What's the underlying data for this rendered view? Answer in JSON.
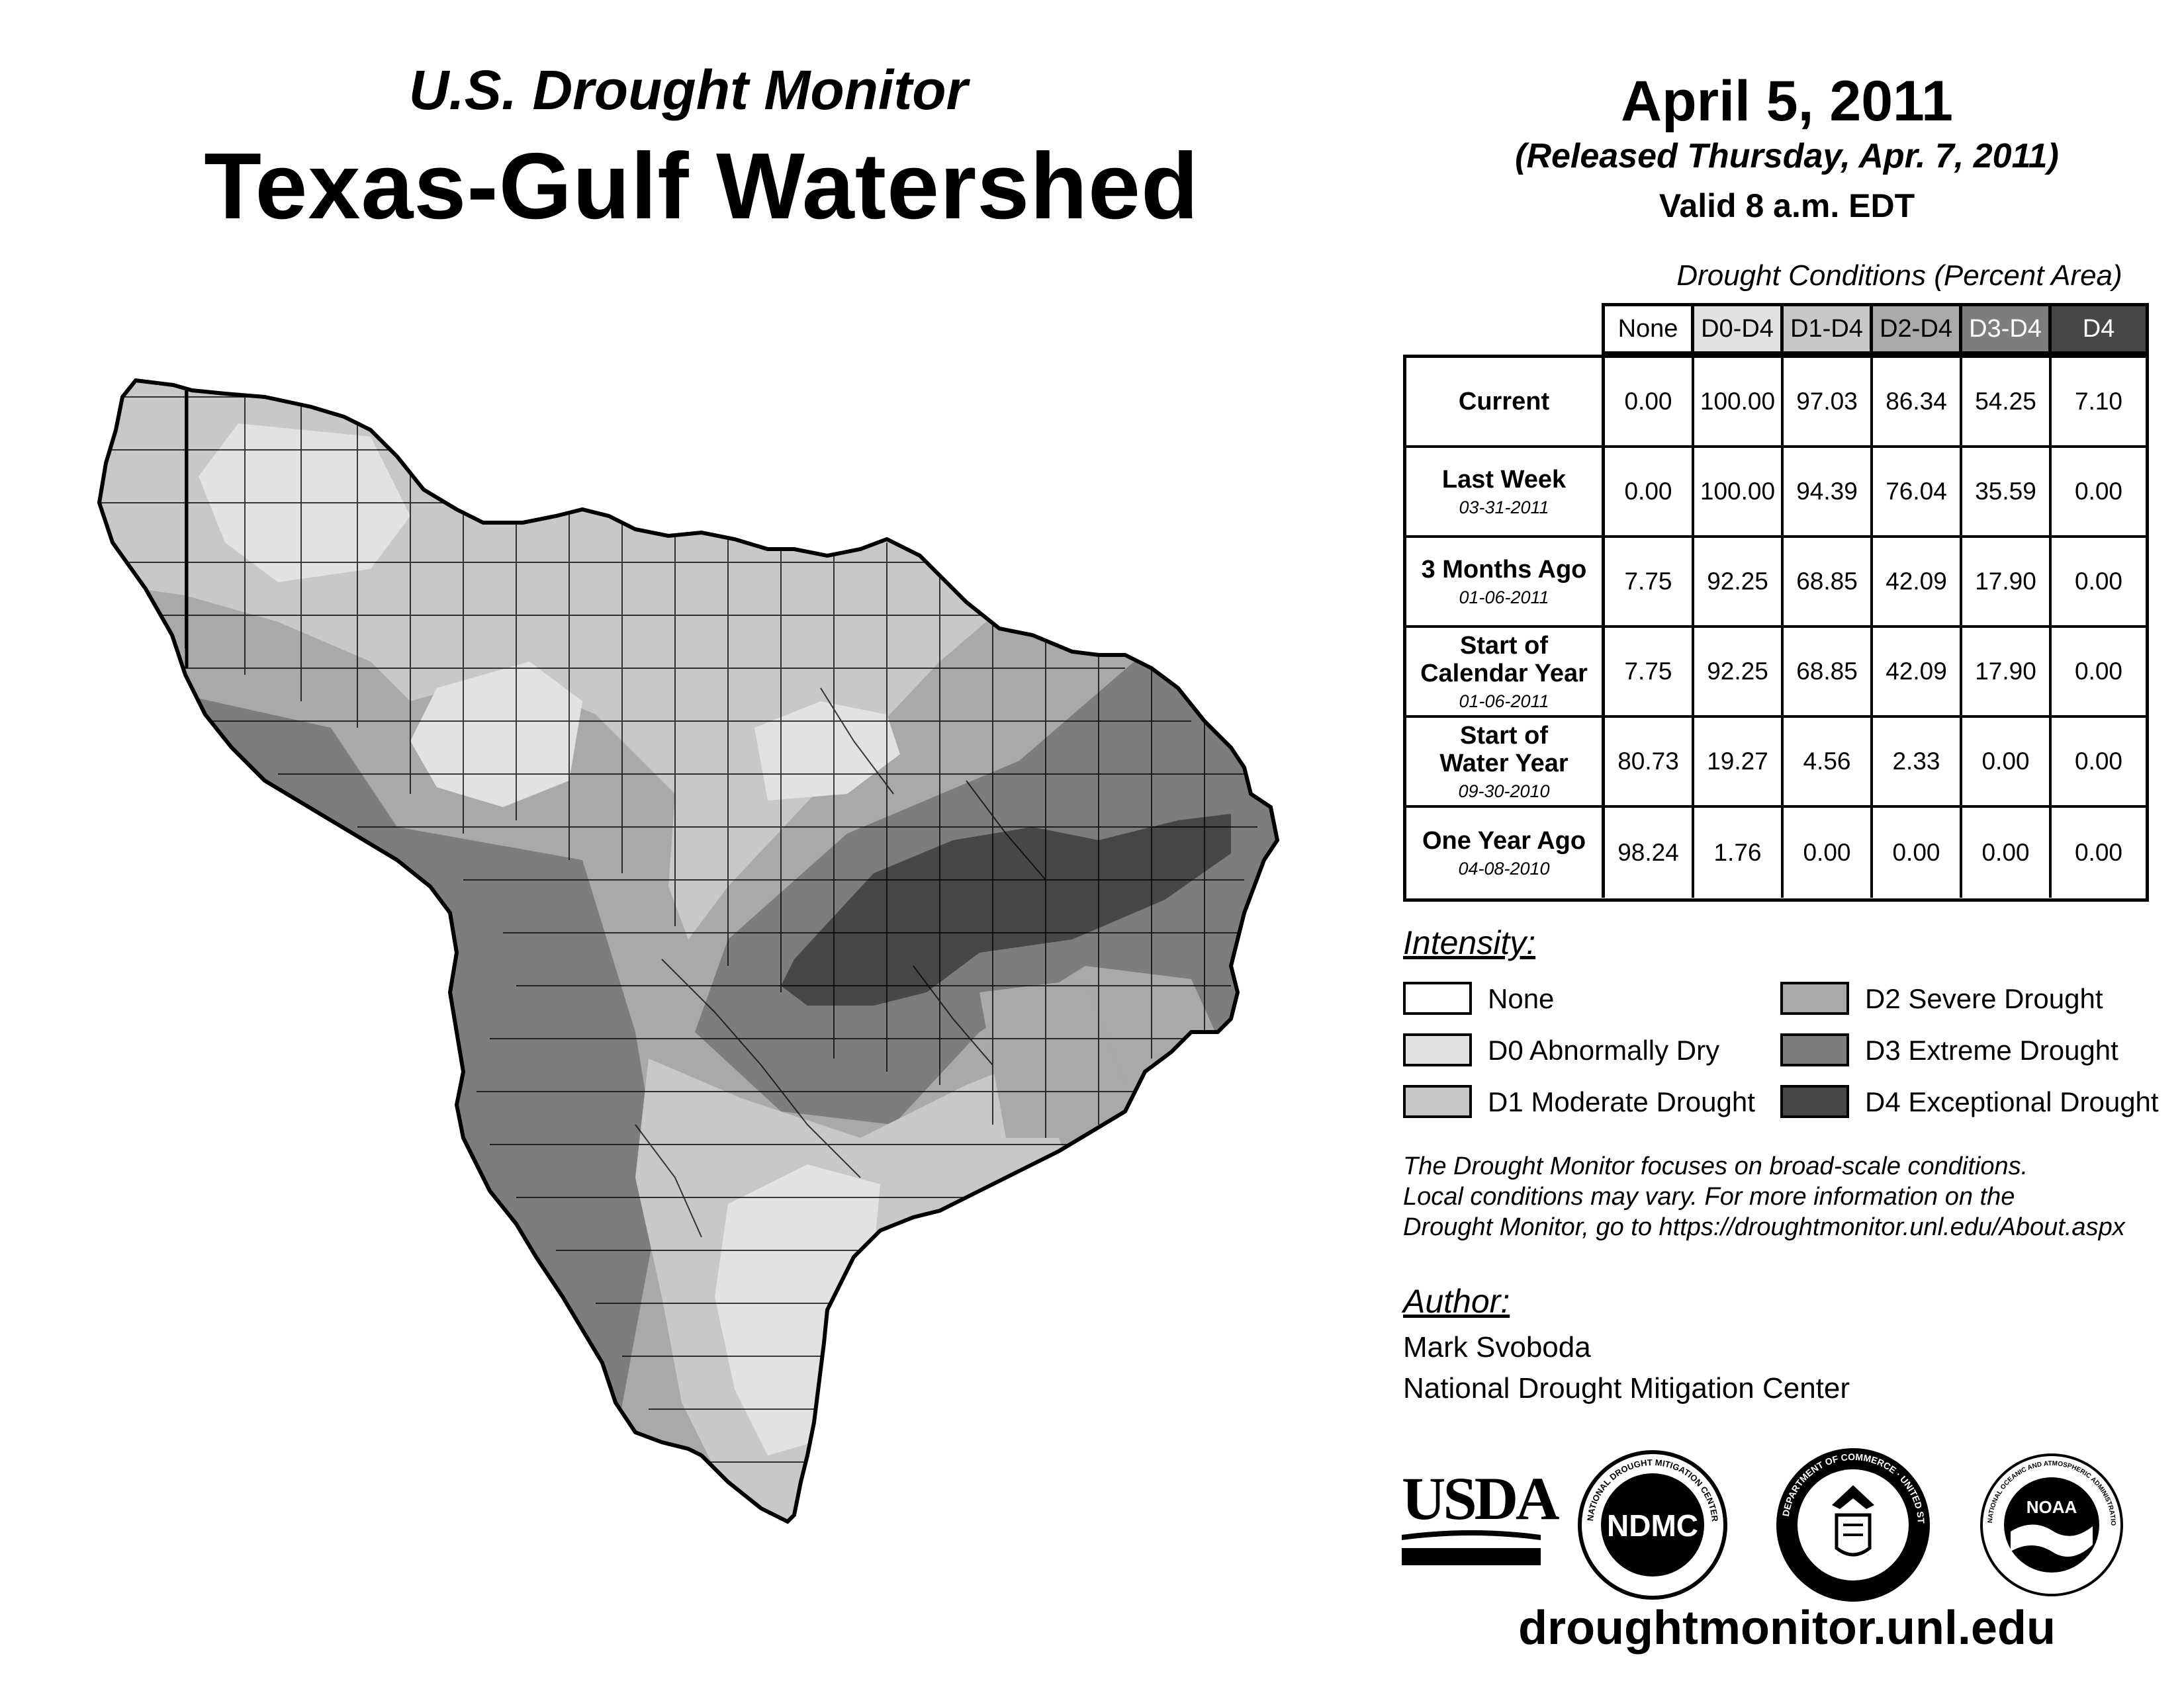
{
  "header": {
    "subtitle": "U.S. Drought Monitor",
    "title": "Texas-Gulf Watershed",
    "date": "April 5, 2011",
    "released": "(Released Thursday, Apr. 7, 2011)",
    "valid": "Valid 8 a.m. EDT"
  },
  "table": {
    "caption": "Drought Conditions (Percent Area)",
    "columns": [
      "None",
      "D0-D4",
      "D1-D4",
      "D2-D4",
      "D3-D4",
      "D4"
    ],
    "rows": [
      {
        "label": "Current",
        "date": "",
        "values": [
          "0.00",
          "100.00",
          "97.03",
          "86.34",
          "54.25",
          "7.10"
        ]
      },
      {
        "label": "Last Week",
        "date": "03-31-2011",
        "values": [
          "0.00",
          "100.00",
          "94.39",
          "76.04",
          "35.59",
          "0.00"
        ]
      },
      {
        "label": "3 Months Ago",
        "date": "01-06-2011",
        "values": [
          "7.75",
          "92.25",
          "68.85",
          "42.09",
          "17.90",
          "0.00"
        ]
      },
      {
        "label": "Start of Calendar Year",
        "date": "01-06-2011",
        "values": [
          "7.75",
          "92.25",
          "68.85",
          "42.09",
          "17.90",
          "0.00"
        ]
      },
      {
        "label": "Start of Water Year",
        "date": "09-30-2010",
        "values": [
          "80.73",
          "19.27",
          "4.56",
          "2.33",
          "0.00",
          "0.00"
        ]
      },
      {
        "label": "One Year Ago",
        "date": "04-08-2010",
        "values": [
          "98.24",
          "1.76",
          "0.00",
          "0.00",
          "0.00",
          "0.00"
        ]
      }
    ]
  },
  "legend": {
    "heading": "Intensity:",
    "items": [
      {
        "label": "None",
        "color": "#ffffff"
      },
      {
        "label": "D0 Abnormally Dry",
        "color": "#e2e2e2"
      },
      {
        "label": "D1 Moderate Drought",
        "color": "#c8c8c8"
      },
      {
        "label": "D2 Severe Drought",
        "color": "#a9a9a9"
      },
      {
        "label": "D3 Extreme Drought",
        "color": "#7d7d7d"
      },
      {
        "label": "D4 Exceptional Drought",
        "color": "#474747"
      }
    ]
  },
  "note": [
    "The Drought Monitor focuses on broad-scale conditions.",
    "Local conditions may vary. For more information on the",
    "Drought Monitor, go to https://droughtmonitor.unl.edu/About.aspx"
  ],
  "author": {
    "heading": "Author:",
    "name": "Mark Svoboda",
    "org": "National Drought Mitigation Center"
  },
  "logos": {
    "usda": "USDA",
    "ndmc": "NDMC",
    "ndmc_ring": "NATIONAL DROUGHT MITIGATION CENTER · UNIVERSITY OF NEBRASKA",
    "doc_ring": "DEPARTMENT OF COMMERCE · UNITED STATES OF AMERICA",
    "noaa": "NOAA",
    "noaa_ring": "NATIONAL OCEANIC AND ATMOSPHERIC ADMINISTRATION · U.S. DEPARTMENT OF COMMERCE"
  },
  "footer": {
    "website": "droughtmonitor.unl.edu"
  }
}
